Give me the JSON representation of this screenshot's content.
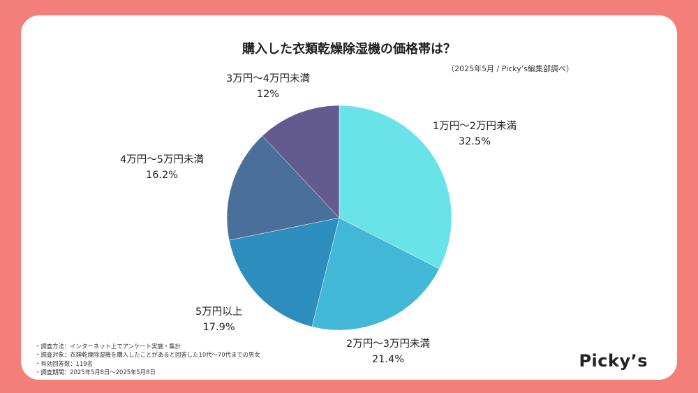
{
  "chart_data": {
    "type": "pie",
    "title": "購入した衣類乾燥除湿機の価格帯は？",
    "source_note": "（2025年5月 / Picky’s編集部調べ）",
    "slices": [
      {
        "label": "1万円〜2万円未満",
        "value": 32.5,
        "value_label": "32.5%",
        "color": "#6ae3e8"
      },
      {
        "label": "2万円〜3万円未満",
        "value": 21.4,
        "value_label": "21.4%",
        "color": "#43b7d6"
      },
      {
        "label": "5万円以上",
        "value": 17.9,
        "value_label": "17.9%",
        "color": "#2d8ebd"
      },
      {
        "label": "4万円〜5万円未満",
        "value": 16.2,
        "value_label": "16.2%",
        "color": "#4a6f9a"
      },
      {
        "label": "3万円〜4万円未満",
        "value": 12.0,
        "value_label": "12%",
        "color": "#635a8f"
      }
    ]
  },
  "notes": [
    "・調査方法：インターネット上でアンケート実施・集計",
    "・調査対象：衣類乾燥除湿機を購入したことがあると回答した10代〜70代までの男女",
    "・有効回答数：119名",
    "・調査期間：2025年5月8日〜2025年5月8日"
  ],
  "brand": {
    "logo_text": "Picky’s"
  },
  "colors": {
    "background": "#f47e78",
    "card": "#ffffff"
  }
}
